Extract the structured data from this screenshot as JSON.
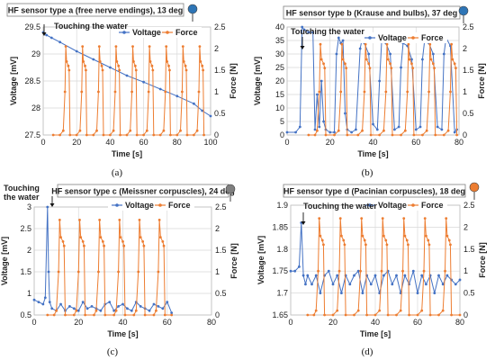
{
  "chart_data": [
    {
      "type": "line",
      "panel_label": "(a)",
      "title": "HF sensor type a (free nerve endings), 13 deg",
      "annotation": "Touching the water",
      "xlabel": "Time   [s]",
      "ylabel_left": "Voltage  [mV]",
      "ylabel_right": "Force  [N]",
      "xlim": [
        0,
        100
      ],
      "ylim_left": [
        27.5,
        29.5
      ],
      "ylim_right": [
        0,
        2.5
      ],
      "xticks": [
        0,
        20,
        40,
        60,
        80,
        100
      ],
      "yticks_left": [
        27.5,
        28,
        28.5,
        29,
        29.5
      ],
      "yticks_right": [
        0,
        0.5,
        1,
        1.5,
        2,
        2.5
      ],
      "legend": [
        "Voltage",
        "Force"
      ],
      "series": [
        {
          "name": "Voltage",
          "color": "#4472C4",
          "x": [
            0,
            2,
            5,
            10,
            20,
            30,
            40,
            50,
            60,
            70,
            80,
            90,
            95,
            100
          ],
          "y": [
            29.4,
            29.35,
            29.3,
            29.22,
            29.05,
            28.9,
            28.75,
            28.6,
            28.48,
            28.35,
            28.22,
            28.08,
            27.95,
            27.85
          ]
        },
        {
          "name": "Force",
          "color": "#ED7D31",
          "x": [
            6,
            10,
            12,
            13,
            13.5,
            14,
            15,
            15.5,
            16,
            20,
            22,
            23,
            23.5,
            24,
            25,
            25.5,
            26,
            30,
            32,
            33,
            33.5,
            34,
            35,
            35.5,
            36,
            40,
            42,
            43,
            43.5,
            44,
            45,
            45.5,
            46,
            50,
            52,
            53,
            53.5,
            54,
            55,
            55.5,
            56,
            60,
            62,
            63,
            63.5,
            64,
            65,
            65.5,
            66,
            70,
            72,
            73,
            73.5,
            74,
            75,
            75.5,
            76,
            80,
            82,
            83,
            83.5,
            84,
            85,
            85.5,
            86,
            90,
            92,
            93,
            93.5,
            94,
            95,
            95.5,
            96
          ],
          "y": [
            0,
            0,
            0.1,
            1.0,
            2.05,
            1.7,
            1.6,
            1.5,
            0,
            0,
            0.1,
            1.0,
            2.05,
            1.7,
            1.6,
            1.5,
            0,
            0,
            0.1,
            1.0,
            2.05,
            1.7,
            1.6,
            1.5,
            0,
            0,
            0.1,
            1.0,
            2.05,
            1.7,
            1.6,
            1.5,
            0,
            0,
            0.1,
            1.0,
            2.05,
            1.7,
            1.6,
            1.5,
            0,
            0,
            0.1,
            1.0,
            2.05,
            1.7,
            1.6,
            1.5,
            0,
            0,
            0.1,
            1.0,
            2.05,
            1.7,
            1.6,
            1.5,
            0,
            0,
            0.1,
            1.0,
            2.05,
            1.7,
            1.6,
            1.5,
            0,
            0,
            0.1,
            1.0,
            2.05,
            1.7,
            1.6,
            1.5,
            0
          ]
        }
      ]
    },
    {
      "type": "line",
      "panel_label": "(b)",
      "title": "HF sensor type b (Krause and bulbs), 37 deg",
      "annotation": "Touching the water",
      "xlabel": "Time   [s]",
      "ylabel_left": "Voltage  [mV]",
      "ylabel_right": "Force  [N]",
      "xlim": [
        0,
        80
      ],
      "ylim_left": [
        0,
        40
      ],
      "ylim_right": [
        0,
        2.5
      ],
      "xticks": [
        0,
        20,
        40,
        60,
        80
      ],
      "yticks_left": [
        0,
        5,
        10,
        15,
        20,
        25,
        30,
        35,
        40
      ],
      "yticks_right": [
        0,
        0.5,
        1,
        1.5,
        2,
        2.5
      ],
      "legend": [
        "Voltage",
        "Force"
      ],
      "series": [
        {
          "name": "Voltage",
          "color": "#4472C4",
          "x": [
            0,
            4,
            6,
            7,
            8,
            10,
            12,
            13,
            14,
            15,
            16,
            17,
            18,
            20,
            22,
            23,
            24,
            25,
            26,
            27,
            28,
            30,
            32,
            34,
            35,
            36,
            38,
            40,
            42,
            43,
            44,
            46,
            48,
            50,
            52,
            53,
            54,
            56,
            58,
            60,
            62,
            63,
            64,
            66,
            68,
            70,
            72,
            73,
            74,
            76,
            78,
            79
          ],
          "y": [
            1,
            1,
            3,
            40,
            39,
            38,
            38,
            2,
            15,
            3,
            20,
            5,
            2,
            1,
            1,
            30,
            36,
            34,
            35,
            8,
            2,
            1,
            2,
            32,
            36,
            34,
            30,
            4,
            2,
            20,
            35,
            34,
            30,
            2,
            3,
            25,
            34,
            33,
            28,
            2,
            3,
            28,
            35,
            34,
            30,
            3,
            2,
            30,
            36,
            33,
            1,
            2
          ]
        },
        {
          "name": "Force",
          "color": "#ED7D31",
          "x": [
            10,
            13,
            14,
            15,
            15.5,
            16,
            17,
            17.5,
            18,
            22,
            24,
            25,
            25.5,
            26,
            27,
            27.5,
            28,
            33,
            35,
            36,
            36.5,
            37,
            38,
            38.5,
            39,
            43,
            45,
            46,
            46.5,
            47,
            48,
            48.5,
            49,
            53,
            55,
            56,
            56.5,
            57,
            58,
            58.5,
            59,
            63,
            65,
            66,
            66.5,
            67,
            68,
            68.5,
            69,
            73,
            75,
            76,
            76.5,
            77,
            78,
            78.5,
            79
          ],
          "y": [
            0,
            0,
            0.1,
            1.0,
            2.1,
            1.75,
            1.65,
            1.55,
            0,
            0,
            0.1,
            1.0,
            2.1,
            1.75,
            1.65,
            1.55,
            0,
            0,
            0.1,
            1.0,
            2.1,
            1.75,
            1.65,
            1.55,
            0,
            0,
            0.1,
            1.0,
            2.1,
            1.75,
            1.65,
            1.55,
            0,
            0,
            0.1,
            1.0,
            2.1,
            1.75,
            1.65,
            1.55,
            0,
            0,
            0.1,
            1.0,
            2.1,
            1.75,
            1.65,
            1.55,
            0,
            0,
            0.1,
            1.0,
            2.1,
            1.75,
            1.65,
            1.55,
            0
          ]
        }
      ]
    },
    {
      "type": "line",
      "panel_label": "(c)",
      "title": "HF sensor type c (Meissner corpuscles), 24 deg",
      "annotation": "Touching\nthe water",
      "xlabel": "Time   [s]",
      "ylabel_left": "Voltage  [mV]",
      "ylabel_right": "Force  [N]",
      "xlim": [
        0,
        80
      ],
      "ylim_left": [
        0.5,
        3
      ],
      "ylim_right": [
        0,
        2.5
      ],
      "xticks": [
        0,
        20,
        40,
        60,
        80
      ],
      "yticks_left": [
        0.5,
        1,
        1.5,
        2,
        2.5,
        3
      ],
      "yticks_right": [
        0,
        0.5,
        1,
        1.5,
        2,
        2.5
      ],
      "legend": [
        "Voltage",
        "Force"
      ],
      "series": [
        {
          "name": "Voltage",
          "color": "#4472C4",
          "x": [
            0,
            2,
            4,
            5,
            6,
            6.5,
            7,
            8,
            10,
            12,
            14,
            16,
            18,
            20,
            22,
            24,
            26,
            28,
            30,
            32,
            34,
            36,
            38,
            40,
            42,
            44,
            46,
            48,
            50,
            52,
            54,
            56,
            58,
            60,
            62
          ],
          "y": [
            0.85,
            0.8,
            0.75,
            0.9,
            3.0,
            1.5,
            0.8,
            0.65,
            0.6,
            0.75,
            0.6,
            0.7,
            0.65,
            0.6,
            0.8,
            0.65,
            0.7,
            0.65,
            0.6,
            0.75,
            0.8,
            0.6,
            0.7,
            0.75,
            0.65,
            0.6,
            0.8,
            0.7,
            0.65,
            0.6,
            0.75,
            0.7,
            0.65,
            0.8,
            0.55
          ]
        },
        {
          "name": "Force",
          "color": "#ED7D31",
          "x": [
            6,
            9,
            10,
            11,
            11.5,
            12,
            13,
            13.5,
            14,
            18,
            19,
            20,
            20.5,
            21,
            22,
            22.5,
            23,
            27,
            28,
            29,
            29.5,
            30,
            31,
            31.5,
            32,
            36,
            37,
            38,
            38.5,
            39,
            40,
            40.5,
            41,
            45,
            46,
            47,
            47.5,
            48,
            49,
            49.5,
            50,
            54,
            55,
            56,
            56.5,
            57,
            58,
            58.5,
            59,
            62
          ],
          "y": [
            0,
            0,
            0.1,
            1.0,
            2.2,
            1.8,
            1.7,
            1.6,
            0,
            0,
            0.1,
            1.0,
            2.2,
            1.8,
            1.7,
            1.6,
            0,
            0,
            0.1,
            1.0,
            2.2,
            1.8,
            1.7,
            1.6,
            0,
            0,
            0.1,
            1.0,
            2.2,
            1.8,
            1.7,
            1.6,
            0,
            0,
            0.1,
            1.0,
            2.2,
            1.8,
            1.7,
            1.6,
            0,
            0,
            0.1,
            1.0,
            2.2,
            1.8,
            1.7,
            1.6,
            0,
            0
          ]
        }
      ]
    },
    {
      "type": "line",
      "panel_label": "(d)",
      "title": "HF sensor type d (Pacinian corpuscles), 18 deg",
      "annotation": "Touching the water",
      "xlabel": "Time   [s]",
      "ylabel_left": "Voltage  [mV]",
      "ylabel_right": "Force  [N]",
      "xlim": [
        0,
        80
      ],
      "ylim_left": [
        1.65,
        1.9
      ],
      "ylim_right": [
        0,
        2.5
      ],
      "xticks": [
        0,
        20,
        40,
        60,
        80
      ],
      "yticks_left": [
        1.65,
        1.7,
        1.75,
        1.8,
        1.85,
        1.9
      ],
      "yticks_right": [
        0,
        0.5,
        1,
        1.5,
        2,
        2.5
      ],
      "legend": [
        "Voltage",
        "Force"
      ],
      "series": [
        {
          "name": "Voltage",
          "color": "#4472C4",
          "x": [
            0,
            2,
            4,
            5,
            6,
            7,
            8,
            10,
            12,
            14,
            16,
            18,
            20,
            22,
            24,
            26,
            28,
            30,
            32,
            34,
            36,
            38,
            40,
            42,
            44,
            46,
            48,
            50,
            52,
            54,
            56,
            58,
            60,
            62,
            64,
            66,
            68,
            70,
            72,
            74,
            76,
            78,
            80
          ],
          "y": [
            1.75,
            1.75,
            1.76,
            1.86,
            1.74,
            1.72,
            1.74,
            1.72,
            1.74,
            1.7,
            1.74,
            1.75,
            1.72,
            1.74,
            1.7,
            1.74,
            1.72,
            1.74,
            1.75,
            1.7,
            1.74,
            1.72,
            1.74,
            1.7,
            1.74,
            1.75,
            1.72,
            1.74,
            1.7,
            1.74,
            1.72,
            1.75,
            1.7,
            1.74,
            1.72,
            1.74,
            1.7,
            1.74,
            1.72,
            1.74,
            1.73,
            1.72,
            1.73
          ]
        },
        {
          "name": "Force",
          "color": "#ED7D31",
          "x": [
            8,
            11,
            12,
            13,
            13.5,
            14,
            15,
            15.5,
            16,
            20,
            22,
            23,
            23.5,
            24,
            25,
            25.5,
            26,
            30,
            32,
            33,
            33.5,
            34,
            35,
            35.5,
            36,
            40,
            42,
            43,
            43.5,
            44,
            45,
            45.5,
            46,
            50,
            52,
            53,
            53.5,
            54,
            55,
            55.5,
            56,
            60,
            62,
            63,
            63.5,
            64,
            65,
            65.5,
            66,
            70,
            72,
            73,
            73.5,
            74,
            75,
            75.5,
            76,
            80
          ],
          "y": [
            0,
            0,
            0.1,
            1.0,
            2.2,
            1.8,
            1.7,
            1.6,
            0,
            0,
            0.1,
            1.0,
            2.2,
            1.8,
            1.7,
            1.6,
            0,
            0,
            0.1,
            1.0,
            2.2,
            1.8,
            1.7,
            1.6,
            0,
            0,
            0.1,
            1.0,
            2.2,
            1.8,
            1.7,
            1.6,
            0,
            0,
            0.1,
            1.0,
            2.2,
            1.8,
            1.7,
            1.6,
            0,
            0,
            0.1,
            1.0,
            2.2,
            1.8,
            1.7,
            1.6,
            0,
            0,
            0.1,
            1.0,
            2.2,
            1.8,
            1.7,
            1.6,
            0,
            0
          ]
        }
      ]
    }
  ]
}
